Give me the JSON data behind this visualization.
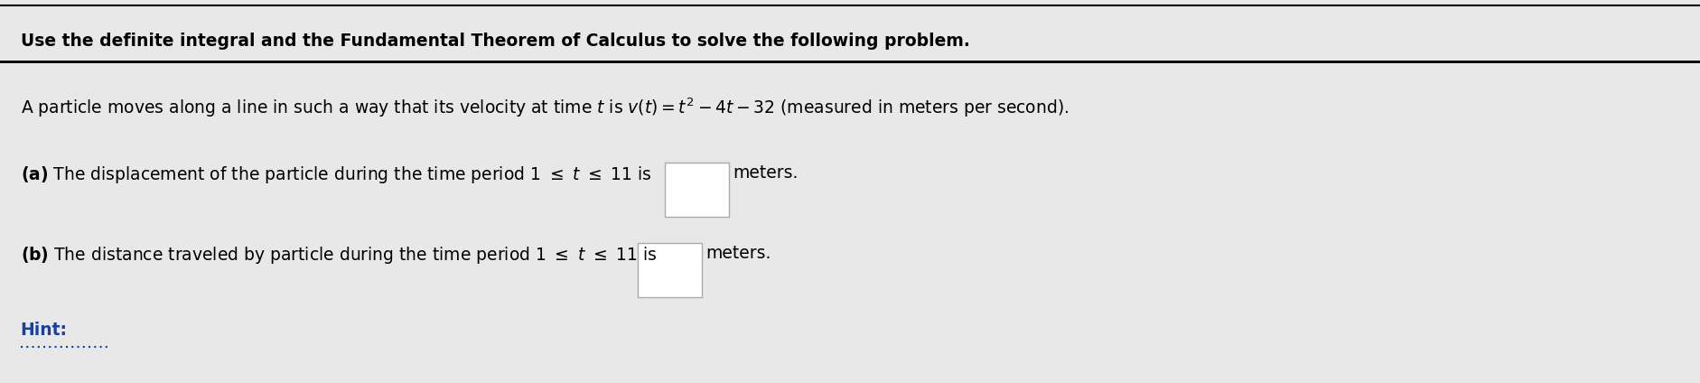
{
  "bg_color": "#e8e8e8",
  "header_text": "Use the definite integral and the Fundamental Theorem of Calculus to solve the following problem.",
  "header_fontsize": 13.5,
  "line1_fontsize": 13.5,
  "parta_fontsize": 13.5,
  "partb_fontsize": 13.5,
  "hint_text": "Hint:",
  "hint_color": "#1a3fa0",
  "hint_fontsize": 13.5,
  "top_border_color": "#000000",
  "divider_color": "#000000",
  "box_color": "#ffffff",
  "box_border": "#aaaaaa"
}
